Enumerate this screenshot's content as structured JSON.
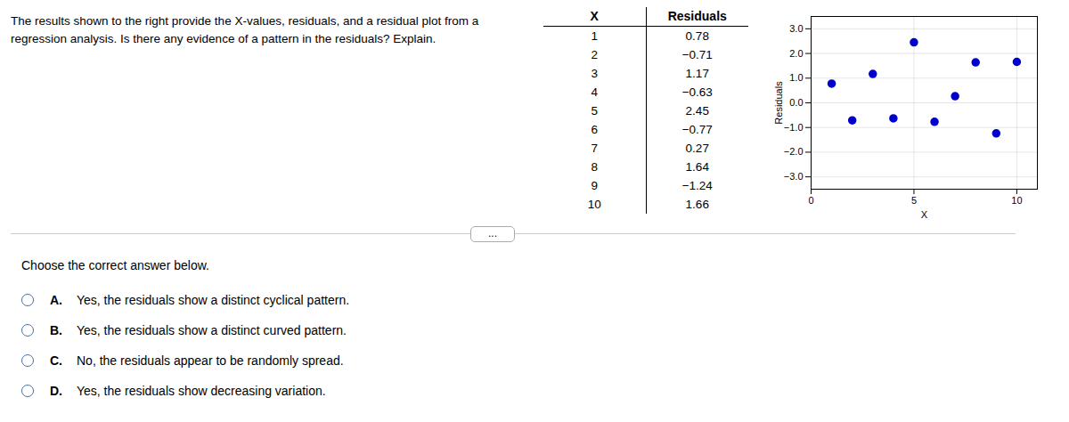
{
  "chart_data": {
    "type": "scatter",
    "x": [
      1,
      2,
      3,
      4,
      5,
      6,
      7,
      8,
      9,
      10
    ],
    "values": [
      0.78,
      -0.71,
      1.17,
      -0.63,
      2.45,
      -0.77,
      0.27,
      1.64,
      -1.24,
      1.66
    ],
    "x_label": "X",
    "y_label": "Residuals",
    "xlim": [
      0,
      11
    ],
    "ylim": [
      -3.5,
      3.5
    ],
    "xticks": [
      0,
      5,
      10
    ],
    "yticks": [
      -3,
      -2,
      -1,
      0,
      1,
      2,
      3
    ],
    "grid": true,
    "color": "#0000cd",
    "annotations": {
      "intro": "The results shown to the right provide the X-values, residuals, and a residual plot from a\nregression analysis. Is there any evidence of a pattern in the residuals? Explain.",
      "table": {
        "columns": [
          "X",
          "Residuals"
        ],
        "rows": [
          [
            1,
            "0.78"
          ],
          [
            2,
            "−0.71"
          ],
          [
            3,
            "1.17"
          ],
          [
            4,
            "−0.63"
          ],
          [
            5,
            "2.45"
          ],
          [
            6,
            "−0.77"
          ],
          [
            7,
            "0.27"
          ],
          [
            8,
            "1.64"
          ],
          [
            9,
            "−1.24"
          ],
          [
            10,
            "1.66"
          ]
        ]
      },
      "button": "...",
      "prompt": "Choose the correct answer below.",
      "options": [
        {
          "label": "A.",
          "text": "Yes, the residuals show a distinct cyclical pattern."
        },
        {
          "label": "B.",
          "text": "Yes, the residuals show a distinct curved pattern."
        },
        {
          "label": "C.",
          "text": "No, the residuals appear to be randomly spread."
        },
        {
          "label": "D.",
          "text": "Yes, the residuals show decreasing variation."
        }
      ]
    }
  }
}
